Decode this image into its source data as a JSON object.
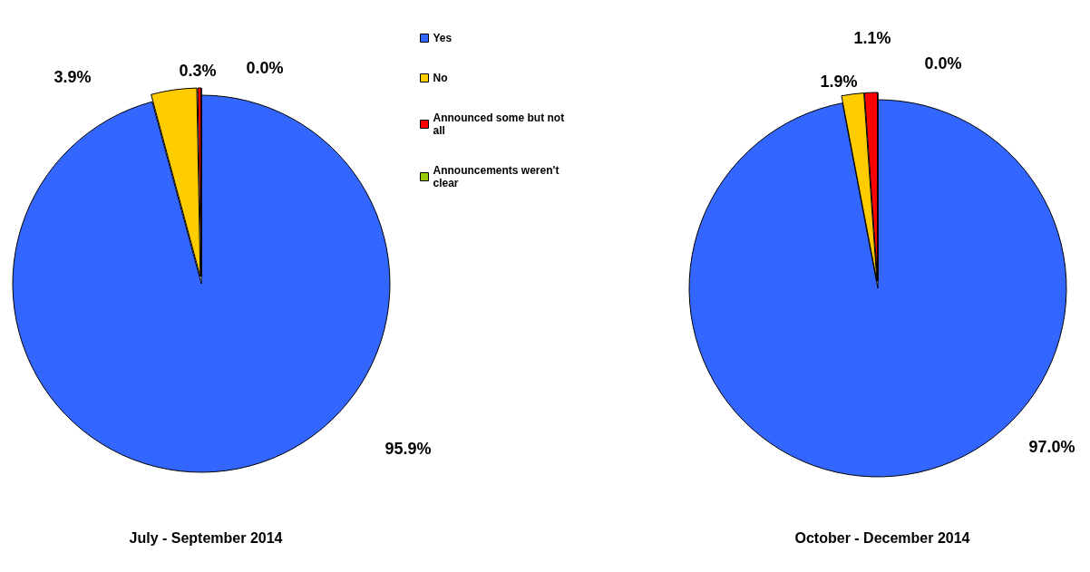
{
  "chart_data": [
    {
      "type": "pie",
      "title": "July - September 2014",
      "categories": [
        "Yes",
        "No",
        "Announced some but not all",
        "Announcements weren't clear"
      ],
      "values": [
        95.9,
        3.9,
        0.3,
        0.0
      ],
      "colors": [
        "#3366ff",
        "#ffcc00",
        "#ff0000",
        "#99cc00"
      ],
      "value_labels": [
        "95.9%",
        "3.9%",
        "0.3%",
        "0.0%"
      ],
      "legend": "right"
    },
    {
      "type": "pie",
      "title": "October - December 2014",
      "categories": [
        null,
        null,
        null,
        null
      ],
      "values": [
        97.0,
        1.9,
        1.1,
        0.0
      ],
      "colors": [
        "#3366ff",
        "#ffcc00",
        "#ff0000",
        "#99cc00"
      ],
      "value_labels": [
        "97.0%",
        "1.9%",
        "1.1%",
        "0.0%"
      ]
    }
  ]
}
